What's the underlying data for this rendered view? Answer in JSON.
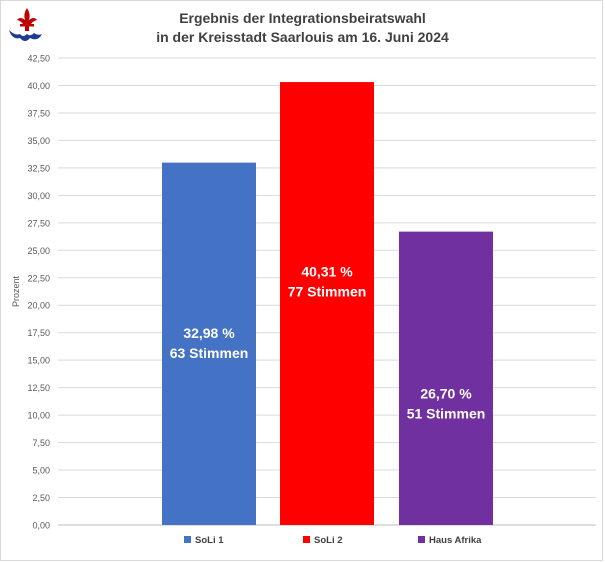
{
  "chart_data": {
    "type": "bar",
    "title_lines": [
      "Ergebnis der Integrationsbeiratswahl",
      "in der Kreisstadt Saarlouis am 16. Juni 2024"
    ],
    "xlabel": "",
    "ylabel": "Prozent",
    "ylim": [
      0,
      42.5
    ],
    "y_ticks": [
      "0,00",
      "2,50",
      "5,00",
      "7,50",
      "10,00",
      "12,50",
      "15,00",
      "17,50",
      "20,00",
      "22,50",
      "25,00",
      "27,50",
      "30,00",
      "32,50",
      "35,00",
      "37,50",
      "40,00",
      "42,50"
    ],
    "categories": [
      "SoLi 1",
      "SoLi 2",
      "Haus Afrika"
    ],
    "values": [
      32.98,
      40.31,
      26.7
    ],
    "colors": [
      "#4472c4",
      "#ff0000",
      "#7030a0"
    ],
    "data_labels": [
      [
        "32,98 %",
        "63 Stimmen"
      ],
      [
        "40,31 %",
        "77 Stimmen"
      ],
      [
        "26,70 %",
        "51 Stimmen"
      ]
    ],
    "grid": true,
    "legend_position": "bottom"
  },
  "logo": {
    "icon": "fleur-de-lis-crest-icon",
    "color": "#c00000",
    "accent": "#1f3a93"
  }
}
